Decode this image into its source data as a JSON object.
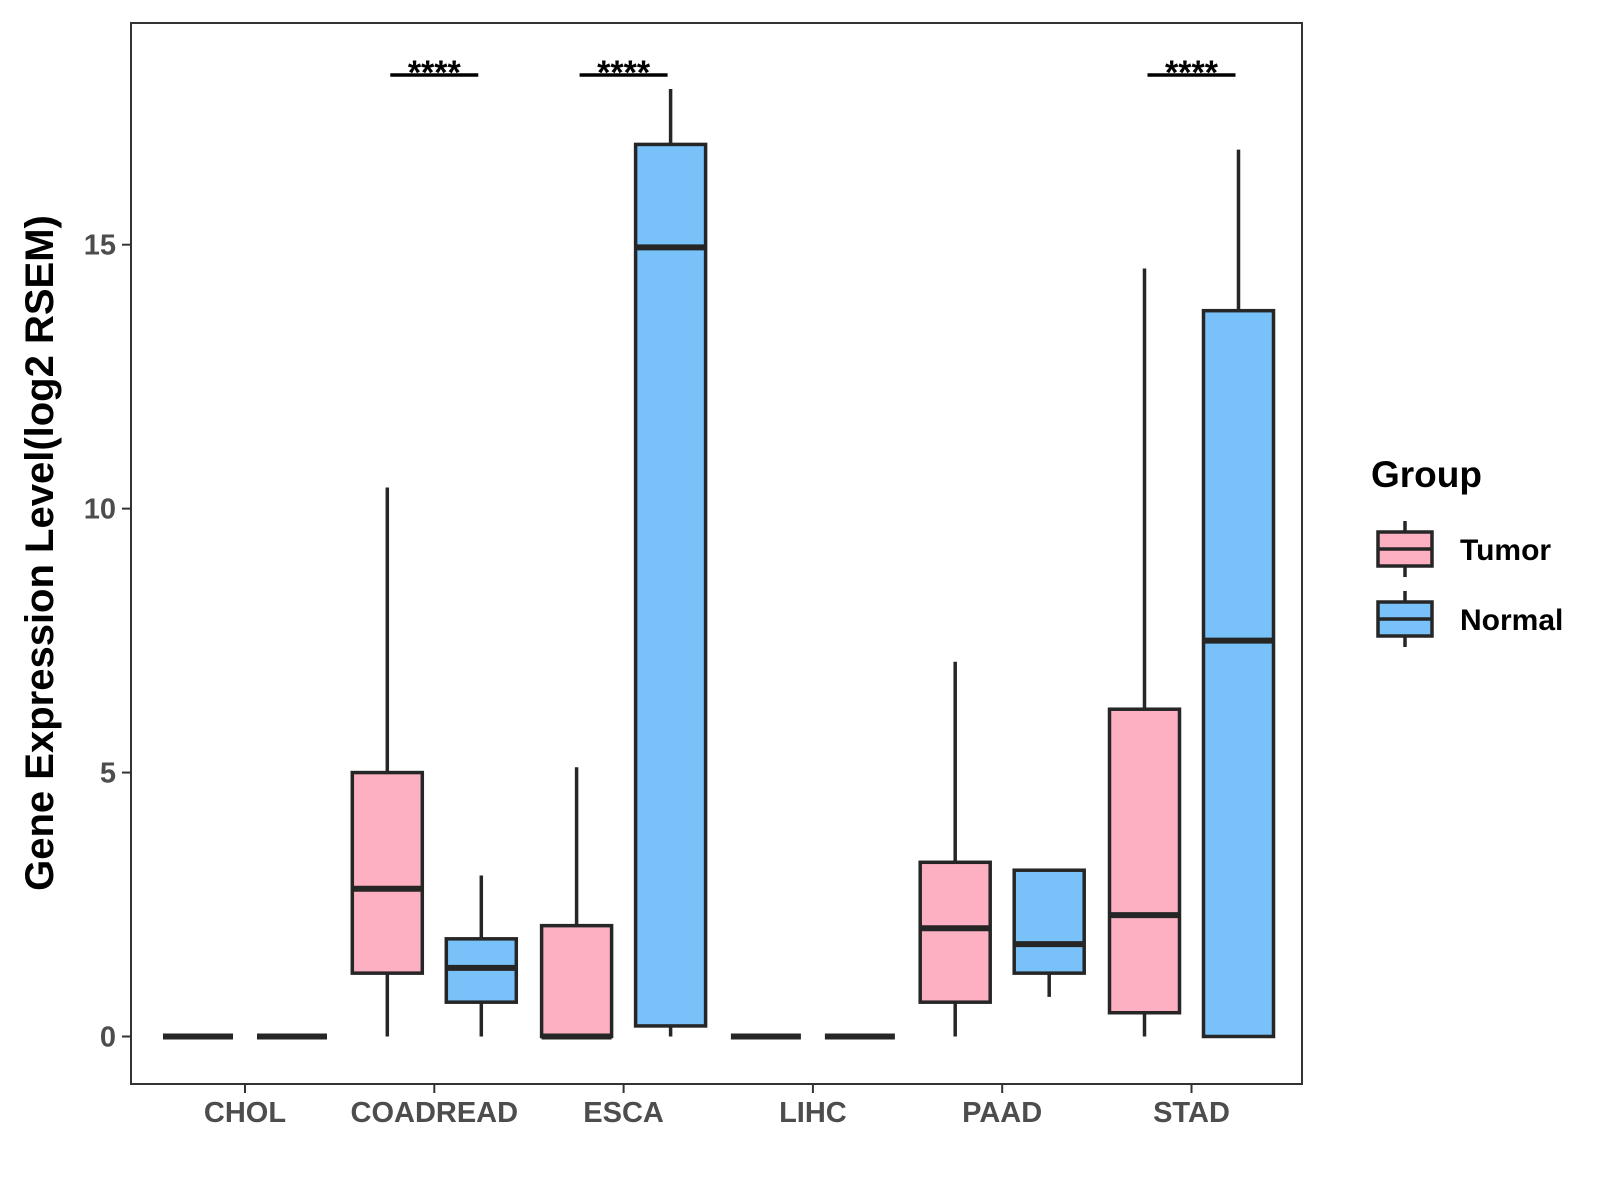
{
  "chart_data": {
    "type": "boxplot",
    "title": "",
    "xlabel": "",
    "ylabel": "Gene Expression Level(log2 RSEM)",
    "ylim": [
      -0.9,
      19.2
    ],
    "yticks": [
      0,
      5,
      10,
      15
    ],
    "grid": false,
    "legend_position": "right",
    "legend": {
      "title": "Group",
      "entries": [
        {
          "name": "Tumor",
          "color": "#FCB0C1"
        },
        {
          "name": "Normal",
          "color": "#78C1F9"
        }
      ]
    },
    "categories": [
      "CHOL",
      "COADREAD",
      "ESCA",
      "LIHC",
      "PAAD",
      "STAD"
    ],
    "series": [
      {
        "name": "Tumor",
        "color": "#FCB0C1",
        "boxes": [
          {
            "min": 0,
            "q1": 0,
            "median": 0,
            "q3": 0,
            "max": 0
          },
          {
            "min": 0,
            "q1": 1.2,
            "median": 2.8,
            "q3": 5.0,
            "max": 10.4
          },
          {
            "min": 0,
            "q1": 0,
            "median": 0,
            "q3": 2.1,
            "max": 5.1
          },
          {
            "min": 0,
            "q1": 0,
            "median": 0,
            "q3": 0,
            "max": 0
          },
          {
            "min": 0,
            "q1": 0.65,
            "median": 2.05,
            "q3": 3.3,
            "max": 7.1
          },
          {
            "min": 0,
            "q1": 0.45,
            "median": 2.3,
            "q3": 6.2,
            "max": 14.55
          }
        ]
      },
      {
        "name": "Normal",
        "color": "#78C1F9",
        "boxes": [
          {
            "min": 0,
            "q1": 0,
            "median": 0,
            "q3": 0,
            "max": 0
          },
          {
            "min": 0,
            "q1": 0.65,
            "median": 1.3,
            "q3": 1.85,
            "max": 3.05
          },
          {
            "min": 0,
            "q1": 0.2,
            "median": 14.95,
            "q3": 16.9,
            "max": 17.95
          },
          {
            "min": 0,
            "q1": 0,
            "median": 0,
            "q3": 0,
            "max": 0
          },
          {
            "min": 0.75,
            "q1": 1.2,
            "median": 1.75,
            "q3": 3.15,
            "max": 3.15
          },
          {
            "min": 0,
            "q1": 0,
            "median": 7.5,
            "q3": 13.75,
            "max": 16.8
          }
        ]
      }
    ],
    "significance": [
      {
        "category": "COADREAD",
        "label": "****"
      },
      {
        "category": "ESCA",
        "label": "****"
      },
      {
        "category": "STAD",
        "label": "****"
      }
    ]
  }
}
